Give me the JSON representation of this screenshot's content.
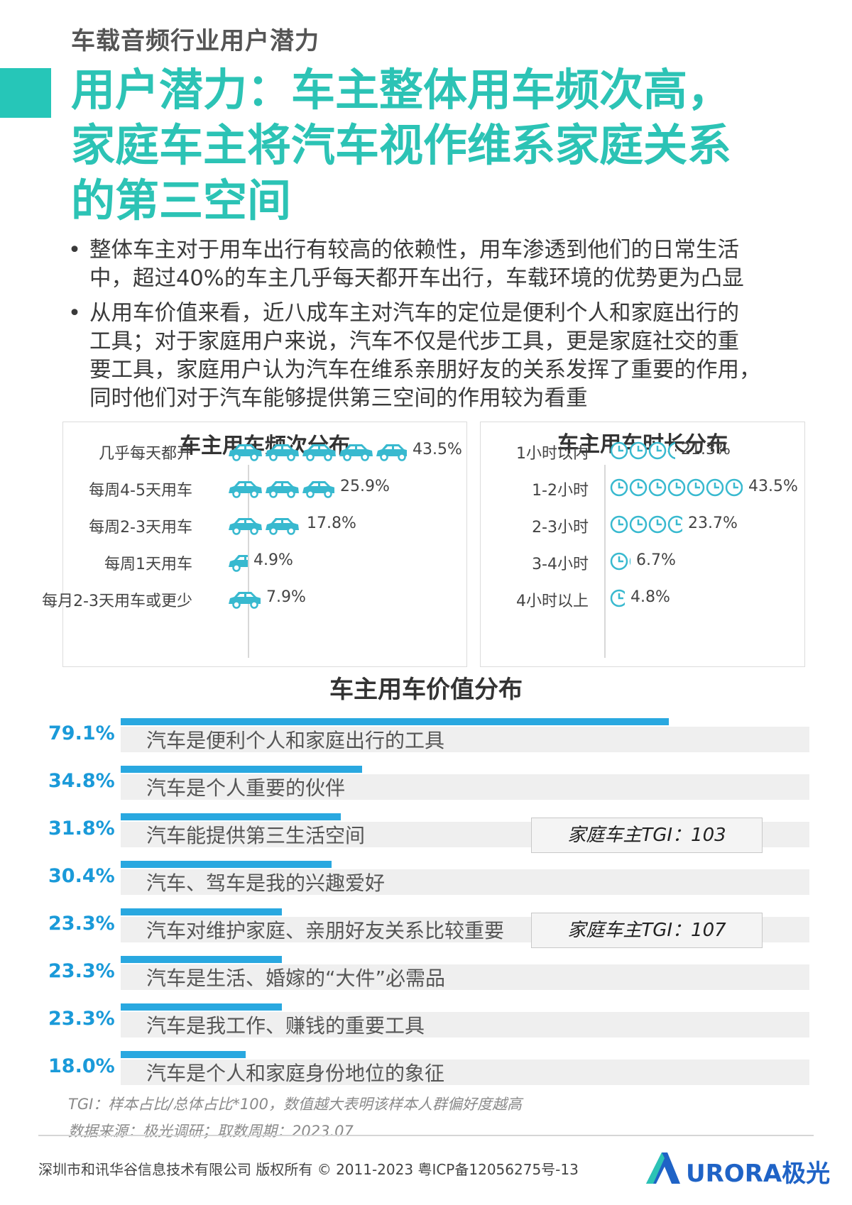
{
  "section_label": "车载音频行业用户潜力",
  "main_title_lines": [
    "用户潜力：车主整体用车频次高，",
    "家庭车主将汽车视作维系家庭关系",
    "的第三空间"
  ],
  "bullets": [
    [
      "整体车主对于用车出行有较高的依赖性，用车渗透到他们的日常生活",
      "中，超过40%的车主几乎每天都开车出行，车载环境的优势更为凸显"
    ],
    [
      "从用车价值来看，近八成车主对汽车的定位是便利个人和家庭出行的",
      "工具；对于家庭用户来说，汽车不仅是代步工具，更是家庭社交的重",
      "要工具，家庭用户认为汽车在维系亲朋好友的关系发挥了重要的作用，",
      "同时他们对于汽车能够提供第三空间的作用较为看重"
    ]
  ],
  "colors": {
    "teal": "#2cc3b5",
    "blue": "#29a8e0",
    "pct_blue": "#1a9ad9",
    "icon": "#38b9cf"
  },
  "chart_data": [
    {
      "type": "bar",
      "title": "车主用车频次分布",
      "icon": "car-icon",
      "categories": [
        "几乎每天都开",
        "每周4-5天用车",
        "每周2-3天用车",
        "每周1天用车",
        "每月2-3天用车或更少"
      ],
      "values": [
        43.5,
        25.9,
        17.8,
        4.9,
        7.9
      ],
      "labels": [
        "43.5%",
        "25.9%",
        "17.8%",
        "4.9%",
        "7.9%"
      ]
    },
    {
      "type": "bar",
      "title": "车主用车时长分布",
      "icon": "clock-icon",
      "categories": [
        "1小时以内",
        "1-2小时",
        "2-3小时",
        "3-4小时",
        "4小时以上"
      ],
      "values": [
        21.3,
        43.5,
        23.7,
        6.7,
        4.8
      ],
      "labels": [
        "21.3%",
        "43.5%",
        "23.7%",
        "6.7%",
        "4.8%"
      ]
    },
    {
      "type": "bar",
      "title": "车主用车价值分布",
      "categories": [
        "汽车是便利个人和家庭出行的工具",
        "汽车是个人重要的伙伴",
        "汽车能提供第三生活空间",
        "汽车、驾车是我的兴趣爱好",
        "汽车对维护家庭、亲朋好友关系比较重要",
        "汽车是生活、婚嫁的“大件”必需品",
        "汽车是我工作、赚钱的重要工具",
        "汽车是个人和家庭身份地位的象征"
      ],
      "values": [
        79.1,
        34.8,
        31.8,
        30.4,
        23.3,
        23.3,
        23.3,
        18.0
      ],
      "labels": [
        "79.1%",
        "34.8%",
        "31.8%",
        "30.4%",
        "23.3%",
        "23.3%",
        "23.3%",
        "18.0%"
      ],
      "annotations": [
        {
          "category": "汽车能提供第三生活空间",
          "text": "家庭车主TGI：103"
        },
        {
          "category": "汽车对维护家庭、亲朋好友关系比较重要",
          "text": "家庭车主TGI：107"
        }
      ]
    }
  ],
  "notes": [
    "TGI：样本占比/总体占比*100，数值越大表明该样本人群偏好度越高",
    "数据来源：极光调研；取数周期：2023.07"
  ],
  "footer": "深圳市和讯华谷信息技术有限公司 版权所有 © 2011-2023 粤ICP备12056275号-13",
  "logo_text": "URORA极光"
}
